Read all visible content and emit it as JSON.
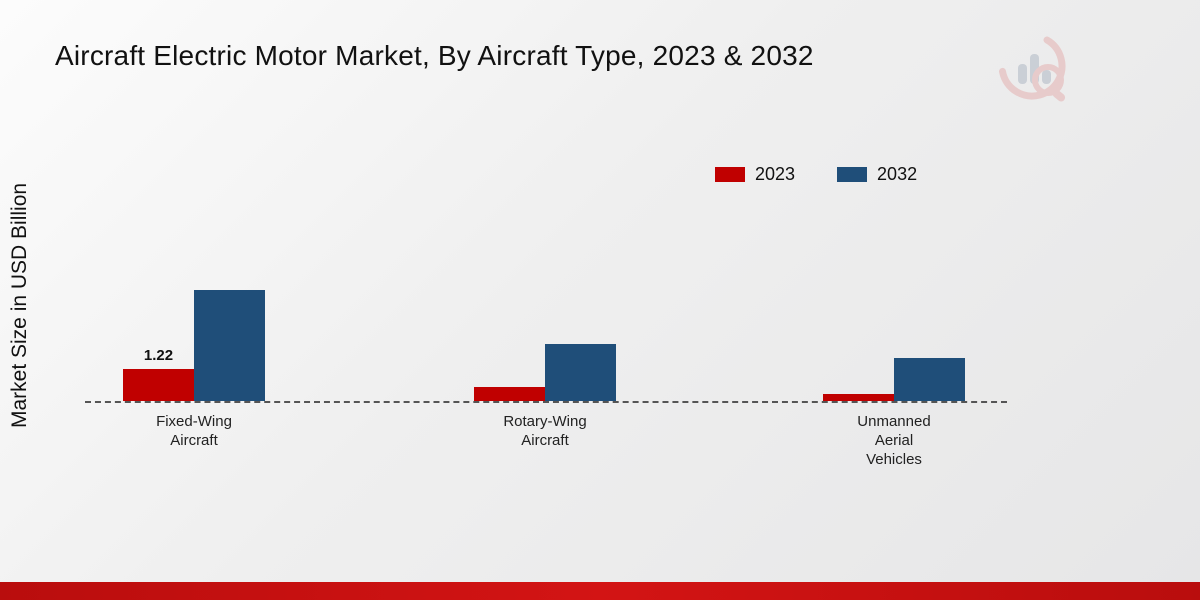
{
  "title": "Aircraft Electric Motor Market, By Aircraft Type, 2023 & 2032",
  "y_axis_label": "Market Size in USD Billion",
  "legend": [
    {
      "label": "2023",
      "color": "#c00000"
    },
    {
      "label": "2032",
      "color": "#1f4e79"
    }
  ],
  "colors": {
    "series_2023": "#c00000",
    "series_2032": "#1f4e79",
    "footer_accent": "#c81010",
    "baseline": "#555555"
  },
  "chart_data": {
    "type": "bar",
    "title": "Aircraft Electric Motor Market, By Aircraft Type, 2023 & 2032",
    "categories": [
      "Fixed-Wing Aircraft",
      "Rotary-Wing Aircraft",
      "Unmanned Aerial Vehicles"
    ],
    "category_label_lines": [
      [
        "Fixed-Wing",
        "Aircraft"
      ],
      [
        "Rotary-Wing",
        "Aircraft"
      ],
      [
        "Unmanned",
        "Aerial",
        "Vehicles"
      ]
    ],
    "series": [
      {
        "name": "2023",
        "color": "#c00000",
        "values": [
          1.22,
          0.55,
          0.28
        ]
      },
      {
        "name": "2032",
        "color": "#1f4e79",
        "values": [
          4.25,
          2.2,
          1.65
        ]
      }
    ],
    "xlabel": "",
    "ylabel": "Market Size in USD Billion",
    "ylim": [
      0,
      4.5
    ],
    "grid": false,
    "legend_position": "top-center",
    "annotations": [
      {
        "series": 0,
        "category": 0,
        "text": "1.22"
      }
    ]
  }
}
